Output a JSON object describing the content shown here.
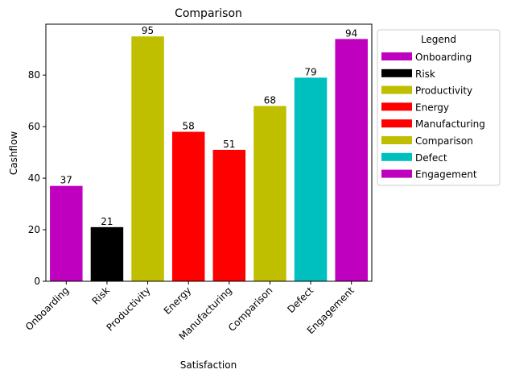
{
  "chart_data": {
    "type": "bar",
    "title": "Comparison",
    "xlabel": "Satisfaction",
    "ylabel": "Cashflow",
    "categories": [
      "Onboarding",
      "Risk",
      "Productivity",
      "Energy",
      "Manufacturing",
      "Comparison",
      "Defect",
      "Engagement"
    ],
    "values": [
      37,
      21,
      95,
      58,
      51,
      68,
      79,
      94
    ],
    "colors": [
      "#bf00bf",
      "#000000",
      "#bfbf00",
      "#ff0000",
      "#ff0000",
      "#bfbf00",
      "#00bfbf",
      "#bf00bf"
    ],
    "ylim": [
      0,
      99.75
    ],
    "yticks": [
      0,
      20,
      40,
      60,
      80
    ],
    "grid": false,
    "legend": {
      "title": "Legend",
      "placement": "outside-right-top",
      "entries": [
        {
          "label": "Onboarding",
          "color": "#bf00bf"
        },
        {
          "label": "Risk",
          "color": "#000000"
        },
        {
          "label": "Productivity",
          "color": "#bfbf00"
        },
        {
          "label": "Energy",
          "color": "#ff0000"
        },
        {
          "label": "Manufacturing",
          "color": "#ff0000"
        },
        {
          "label": "Comparison",
          "color": "#bfbf00"
        },
        {
          "label": "Defect",
          "color": "#00bfbf"
        },
        {
          "label": "Engagement",
          "color": "#bf00bf"
        }
      ]
    }
  }
}
